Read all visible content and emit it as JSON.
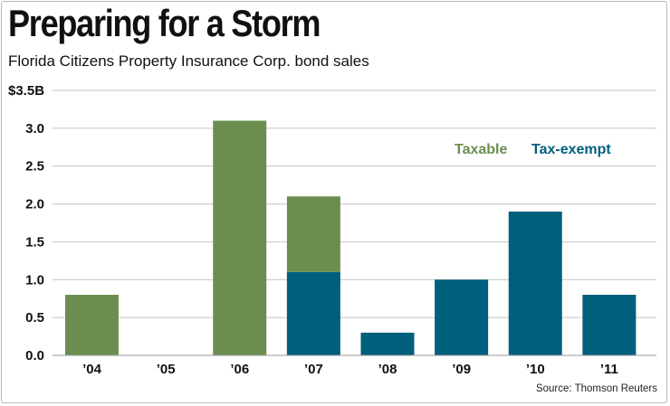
{
  "chart_data": {
    "type": "bar",
    "stacked": true,
    "title": "Preparing for a Storm",
    "subtitle": "Florida Citizens Property Insurance Corp. bond sales",
    "source": "Source: Thomson Reuters",
    "categories": [
      "’04",
      "’05",
      "’06",
      "’07",
      "’08",
      "’09",
      "’10",
      "’11"
    ],
    "series": [
      {
        "name": "Tax-exempt",
        "color": "#005f7d",
        "values": [
          0,
          0,
          0,
          1.1,
          0.3,
          1.0,
          1.9,
          0.8
        ]
      },
      {
        "name": "Taxable",
        "color": "#6b8e50",
        "values": [
          0.8,
          0,
          3.1,
          1.0,
          0,
          0,
          0,
          0
        ]
      }
    ],
    "legend_order": [
      "Taxable",
      "Tax-exempt"
    ],
    "legend_position": "top-right",
    "ylim": [
      0,
      3.5
    ],
    "yticks": [
      0,
      0.5,
      1.0,
      1.5,
      2.0,
      2.5,
      3.0,
      3.5
    ],
    "ytick_labels": [
      "0.0",
      "0.5",
      "1.0",
      "1.5",
      "2.0",
      "2.5",
      "3.0",
      "$3.5B"
    ],
    "grid": true,
    "xlabel": "",
    "ylabel": ""
  }
}
